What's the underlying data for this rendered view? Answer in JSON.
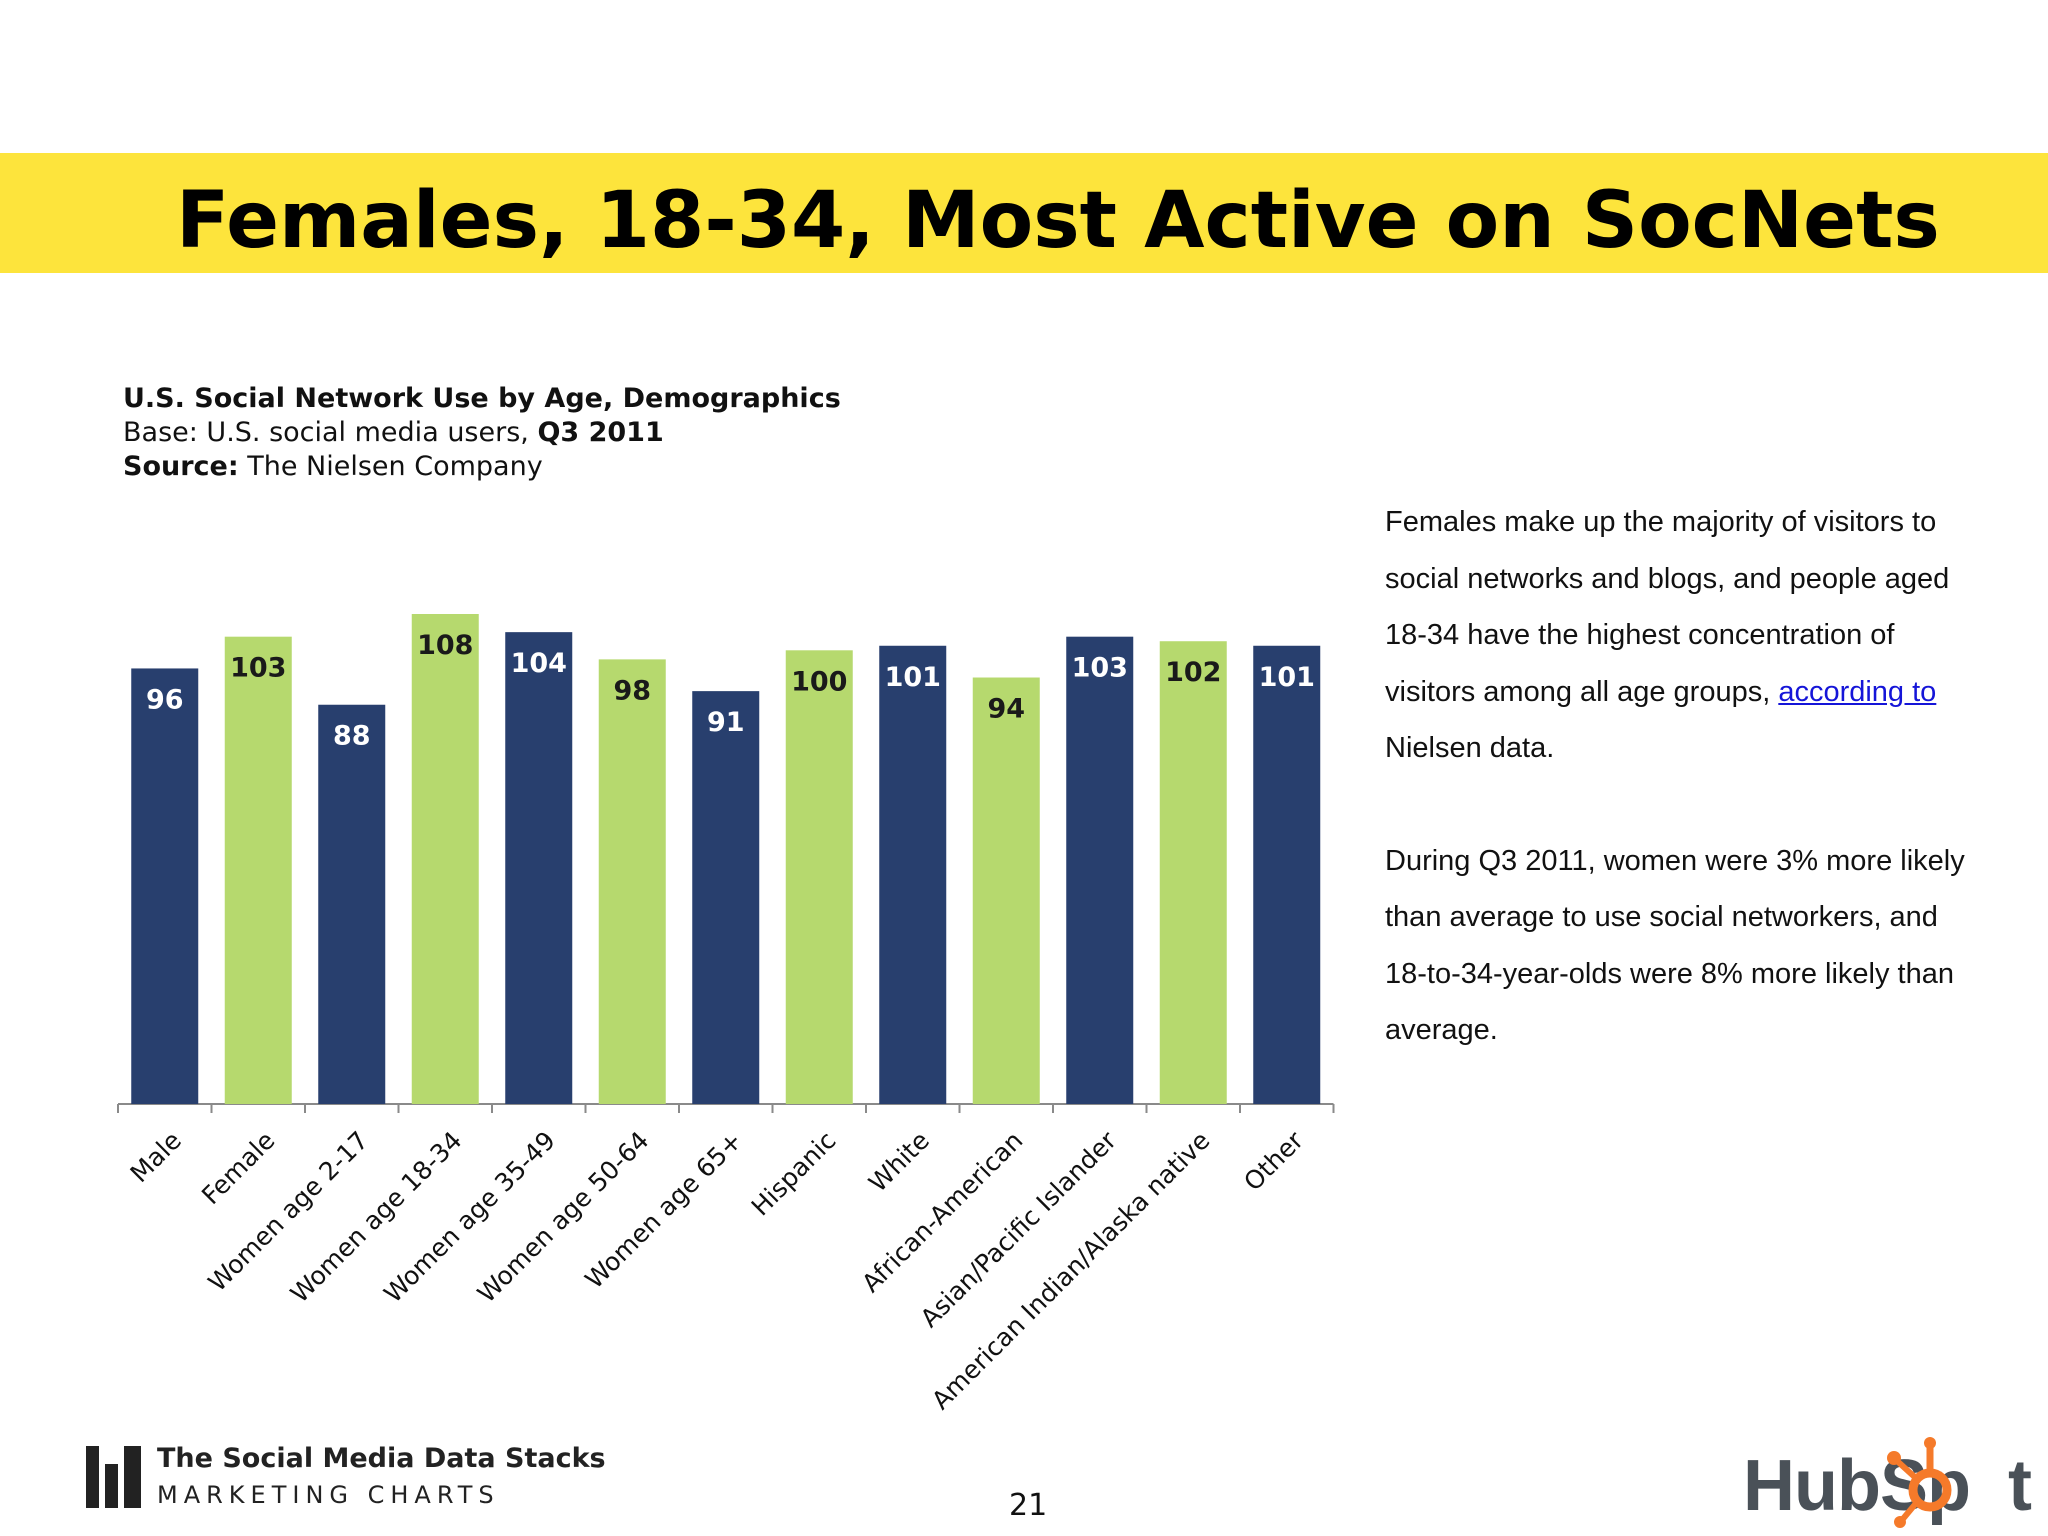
{
  "slide": {
    "title": "Females, 18-34, Most Active on SocNets",
    "page_number": "21"
  },
  "chart_header": {
    "title": "U.S. Social Network Use by Age, Demographics",
    "base_label": "Base: U.S. social media users, ",
    "base_period": "Q3 2011",
    "source_label": "Source:",
    "source_value": " The Nielsen Company"
  },
  "chart_data": {
    "type": "bar",
    "title": "U.S. Social Network Use by Age, Demographics",
    "xlabel": "",
    "ylabel": "",
    "categories": [
      "Male",
      "Female",
      "Women age 2-17",
      "Women age 18-34",
      "Women age 35-49",
      "Women age 50-64",
      "Women age 65+",
      "Hispanic",
      "White",
      "African-American",
      "Asian/Pacific Islander",
      "American Indian/Alaska native",
      "Other"
    ],
    "values": [
      96,
      103,
      88,
      108,
      104,
      98,
      91,
      100,
      101,
      94,
      103,
      102,
      101
    ],
    "bar_colors": [
      "#283f6e",
      "#b6d96e",
      "#283f6e",
      "#b6d96e",
      "#283f6e",
      "#b6d96e",
      "#283f6e",
      "#b6d96e",
      "#283f6e",
      "#b6d96e",
      "#283f6e",
      "#b6d96e",
      "#283f6e"
    ],
    "label_colors": [
      "#ffffff",
      "#1a1a1a",
      "#ffffff",
      "#1a1a1a",
      "#ffffff",
      "#1a1a1a",
      "#ffffff",
      "#1a1a1a",
      "#ffffff",
      "#1a1a1a",
      "#ffffff",
      "#1a1a1a",
      "#ffffff"
    ],
    "ylim": [
      0,
      108
    ],
    "grid": false,
    "legend": "none"
  },
  "side_text": {
    "para1_a": "Females make up the majority of visitors to social networks and blogs, and people aged 18-34 have the highest concentration of visitors among all age groups, ",
    "para1_link": "according to",
    "para1_b": " Nielsen data.",
    "para2": "During Q3 2011, women were 3% more likely than average to use social networkers, and 18-to-34-year-olds were 8% more likely than average."
  },
  "footer": {
    "brand_line1": "The Social Media Data Stacks",
    "brand_line2": "MARKETING CHARTS",
    "hubspot_logo": "HubSpot",
    "colors": {
      "title_band": "#fde43c",
      "hubspot_orange": "#f57a2a",
      "link": "#1515d8"
    }
  }
}
